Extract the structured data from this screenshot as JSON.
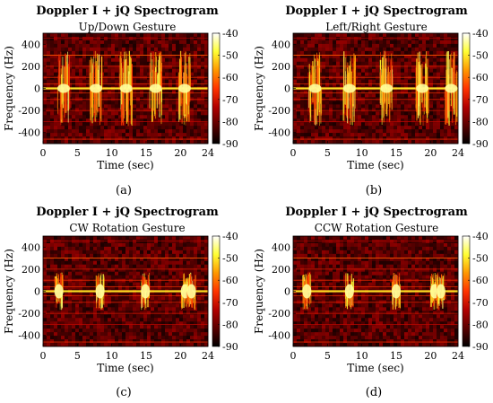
{
  "figure": {
    "panels": [
      {
        "label": "(a)",
        "title": "Doppler I + jQ Spectrogram",
        "subtitle": "Up/Down Gesture",
        "xlabel": "Time (sec)",
        "ylabel": "Frequency (Hz)",
        "bursts": [
          3.0,
          7.7,
          12.1,
          16.4,
          20.6
        ]
      },
      {
        "label": "(b)",
        "title": "Doppler I + jQ Spectrogram",
        "subtitle": "Left/Right Gesture",
        "xlabel": "Time (sec)",
        "ylabel": "Frequency (Hz)",
        "bursts": [
          3.2,
          8.2,
          13.6,
          18.8,
          23.0
        ]
      },
      {
        "label": "(c)",
        "title": "Doppler I + jQ Spectrogram",
        "subtitle": "CW Rotation Gesture",
        "xlabel": "Time (sec)",
        "ylabel": "Frequency (Hz)",
        "bursts": [
          2.3,
          8.3,
          14.9,
          20.7,
          21.6
        ]
      },
      {
        "label": "(d)",
        "title": "Doppler I + jQ Spectrogram",
        "subtitle": "CCW Rotation Gesture",
        "xlabel": "Time (sec)",
        "ylabel": "Frequency (Hz)",
        "bursts": [
          2.0,
          8.2,
          15.0,
          20.6,
          21.5
        ]
      }
    ]
  },
  "chart_data": {
    "type": "heatmap",
    "x_range": [
      0,
      24
    ],
    "x_ticks": [
      0,
      5,
      10,
      15,
      20,
      24
    ],
    "y_range": [
      -500,
      500
    ],
    "y_ticks": [
      -400,
      -200,
      0,
      200,
      400
    ],
    "colorbar_range": [
      -90,
      -40
    ],
    "colorbar_ticks": [
      -90,
      -80,
      -70,
      -60,
      -50,
      -40
    ],
    "colormap": [
      "#000000",
      "#5a0000",
      "#b30000",
      "#ff3300",
      "#ff9900",
      "#ffff33",
      "#ffffff"
    ],
    "grid": false
  }
}
